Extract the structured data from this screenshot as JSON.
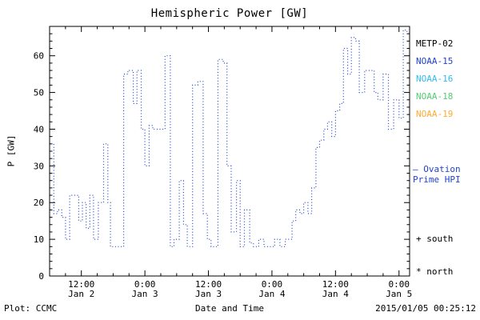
{
  "title": "Hemispheric Power [GW]",
  "footer": {
    "plot_credit": "Plot: CCMC",
    "timestamp": "2015/01/05 00:25:12"
  },
  "axes": {
    "xlabel": "Date and Time",
    "ylabel": "P [GW]",
    "ylim": [
      0,
      68
    ],
    "yticks": [
      0,
      10,
      20,
      30,
      40,
      50,
      60
    ],
    "xlim_hours": [
      6,
      74
    ],
    "xticks": [
      {
        "hours": 12,
        "time": "12:00",
        "date": "Jan 2"
      },
      {
        "hours": 24,
        "time": "0:00",
        "date": "Jan 3"
      },
      {
        "hours": 36,
        "time": "12:00",
        "date": "Jan 3"
      },
      {
        "hours": 48,
        "time": "0:00",
        "date": "Jan 4"
      },
      {
        "hours": 60,
        "time": "12:00",
        "date": "Jan 4"
      },
      {
        "hours": 72,
        "time": "0:00",
        "date": "Jan 5"
      }
    ]
  },
  "legend": {
    "satellites": [
      {
        "label": "METP-02",
        "color": "#000000"
      },
      {
        "label": "NOAA-15",
        "color": "#2244cc"
      },
      {
        "label": "NOAA-16",
        "color": "#33bbee"
      },
      {
        "label": "NOAA-18",
        "color": "#55cc77"
      },
      {
        "label": "NOAA-19",
        "color": "#ffaa33"
      }
    ],
    "series_note": {
      "dash": "–",
      "line1": "Ovation",
      "line2": "Prime HPI",
      "color": "#2244cc"
    },
    "markers": [
      {
        "symbol": "+",
        "label": "south"
      },
      {
        "symbol": "*",
        "label": "north"
      }
    ]
  },
  "chart_data": {
    "type": "line",
    "line_style": "dotted-step",
    "series_name": "Ovation Prime HPI",
    "line_color": "#2244cc",
    "title": "Hemispheric Power [GW]",
    "xlabel": "Date and Time",
    "ylabel": "P [GW]",
    "ylim": [
      0,
      68
    ],
    "xlim_hours": [
      6,
      74
    ],
    "x_unit": "hours from Jan 2 00:00",
    "points": [
      [
        6.3,
        36
      ],
      [
        6.8,
        17
      ],
      [
        7.5,
        18
      ],
      [
        8.3,
        16
      ],
      [
        9.0,
        10
      ],
      [
        9.8,
        22
      ],
      [
        10.8,
        22
      ],
      [
        11.5,
        15
      ],
      [
        12.2,
        20
      ],
      [
        12.9,
        13
      ],
      [
        13.6,
        22
      ],
      [
        14.3,
        10
      ],
      [
        15.2,
        20
      ],
      [
        16.2,
        36
      ],
      [
        17.0,
        20
      ],
      [
        17.5,
        8
      ],
      [
        18.8,
        8
      ],
      [
        20.0,
        55
      ],
      [
        20.8,
        56
      ],
      [
        21.8,
        47
      ],
      [
        22.5,
        56
      ],
      [
        23.3,
        40
      ],
      [
        24.0,
        30
      ],
      [
        24.8,
        41
      ],
      [
        25.5,
        40
      ],
      [
        27.8,
        60
      ],
      [
        28.8,
        8
      ],
      [
        29.5,
        10
      ],
      [
        30.5,
        26
      ],
      [
        31.3,
        14
      ],
      [
        32.0,
        8
      ],
      [
        33.0,
        52
      ],
      [
        34.0,
        53
      ],
      [
        35.0,
        17
      ],
      [
        35.8,
        10
      ],
      [
        36.5,
        8
      ],
      [
        37.8,
        59
      ],
      [
        38.8,
        58
      ],
      [
        39.5,
        30
      ],
      [
        40.3,
        12
      ],
      [
        41.3,
        26
      ],
      [
        42.0,
        8
      ],
      [
        42.8,
        18
      ],
      [
        43.8,
        9
      ],
      [
        44.5,
        8
      ],
      [
        45.5,
        10
      ],
      [
        46.5,
        8
      ],
      [
        47.5,
        8
      ],
      [
        48.5,
        10
      ],
      [
        49.5,
        8
      ],
      [
        50.5,
        10
      ],
      [
        51.8,
        15
      ],
      [
        52.5,
        18
      ],
      [
        53.3,
        17
      ],
      [
        54.0,
        20
      ],
      [
        54.8,
        17
      ],
      [
        55.5,
        24
      ],
      [
        56.3,
        35
      ],
      [
        57.0,
        37
      ],
      [
        57.8,
        40
      ],
      [
        58.5,
        42
      ],
      [
        59.3,
        38
      ],
      [
        60.0,
        45
      ],
      [
        60.8,
        47
      ],
      [
        61.5,
        62
      ],
      [
        62.3,
        55
      ],
      [
        63.0,
        65
      ],
      [
        63.8,
        64
      ],
      [
        64.5,
        50
      ],
      [
        65.5,
        56
      ],
      [
        66.5,
        56
      ],
      [
        67.3,
        50
      ],
      [
        68.0,
        48
      ],
      [
        69.0,
        55
      ],
      [
        70.0,
        40
      ],
      [
        71.0,
        48
      ],
      [
        72.0,
        43
      ],
      [
        72.8,
        67
      ],
      [
        73.5,
        66
      ]
    ]
  }
}
